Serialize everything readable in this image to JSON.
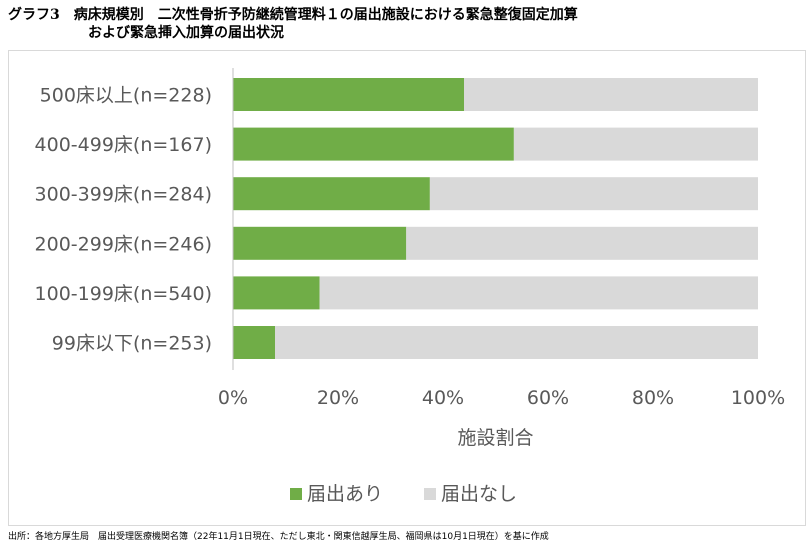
{
  "title_line1": "グラフ3　病床規模別　二次性骨折予防継続管理料１の届出施設における緊急整復固定加算",
  "title_line2": "および緊急挿入加算の届出状況",
  "source": "出所：各地方厚生局　届出受理医療機関名簿（22年11月1日現在、ただし東北・関東信越厚生局、福岡県は10月1日現在）を基に作成",
  "colors": {
    "filed": "#70ad47",
    "not_filed": "#d9d9d9",
    "axis_text": "#595959"
  },
  "chart_data": {
    "type": "bar",
    "orientation": "horizontal",
    "stacked": true,
    "percent": true,
    "categories": [
      "500床以上(n=228)",
      "400-499床(n=167)",
      "300-399床(n=284)",
      "200-299床(n=246)",
      "100-199床(n=540)",
      "99床以下(n=253)"
    ],
    "series": [
      {
        "name": "届出あり",
        "values": [
          44,
          53.5,
          37.5,
          33,
          16.5,
          8
        ]
      },
      {
        "name": "届出なし",
        "values": [
          56,
          46.5,
          62.5,
          67,
          83.5,
          92
        ]
      }
    ],
    "xlabel": "施設割合",
    "xlim": [
      0,
      100
    ],
    "xticks": [
      "0%",
      "20%",
      "40%",
      "60%",
      "80%",
      "100%"
    ],
    "legend_position": "bottom",
    "grid": false
  }
}
